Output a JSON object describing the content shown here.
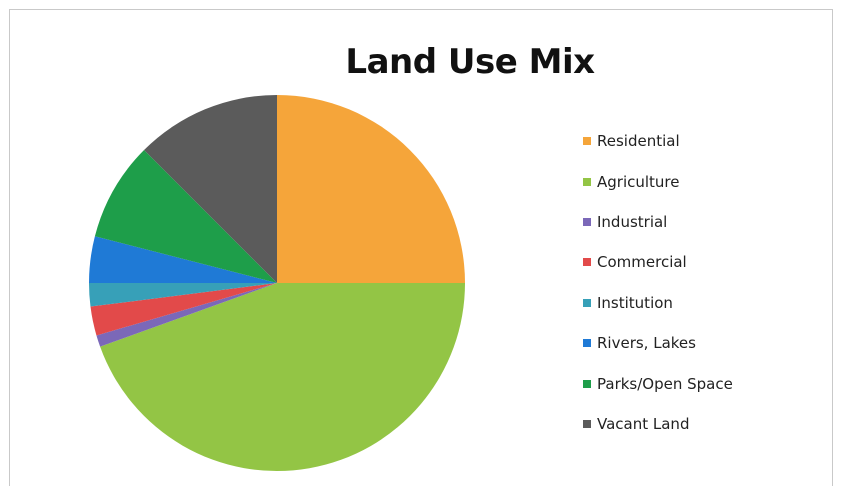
{
  "chart_data": {
    "type": "pie",
    "title": "Land Use Mix",
    "legend_position": "right",
    "slices": [
      {
        "label": "Residential",
        "value": 25.0,
        "color": "#f5a53a"
      },
      {
        "label": "Agriculture",
        "value": 44.5,
        "color": "#93c545"
      },
      {
        "label": "Industrial",
        "value": 1.0,
        "color": "#7b68b8"
      },
      {
        "label": "Commercial",
        "value": 2.5,
        "color": "#e24a4a"
      },
      {
        "label": "Institution",
        "value": 2.0,
        "color": "#37a0b8"
      },
      {
        "label": "Rivers, Lakes",
        "value": 4.0,
        "color": "#1f7ad6"
      },
      {
        "label": "Parks/Open Space",
        "value": 8.5,
        "color": "#1e9e4a"
      },
      {
        "label": "Vacant Land",
        "value": 12.5,
        "color": "#5b5b5b"
      }
    ]
  }
}
